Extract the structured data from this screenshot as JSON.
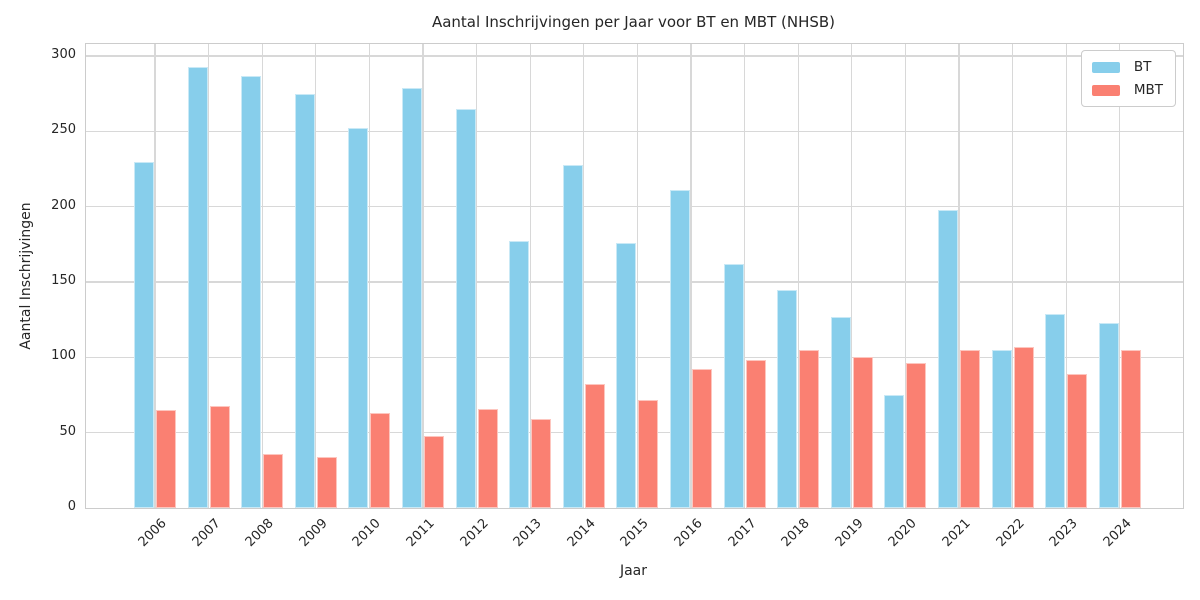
{
  "title": "Aantal Inschrijvingen per Jaar voor BT en MBT (NHSB)",
  "colors": {
    "bt": "#87CEEB",
    "mbt": "#FA8072",
    "grid": "#d8d8d8",
    "spine": "#cccccc",
    "text": "#262626",
    "background": "#ffffff"
  },
  "chart_data": {
    "type": "bar",
    "title": "Aantal Inschrijvingen per Jaar voor BT en MBT (NHSB)",
    "xlabel": "Jaar",
    "ylabel": "Aantal Inschrijvingen",
    "categories": [
      "2006",
      "2007",
      "2008",
      "2009",
      "2010",
      "2011",
      "2012",
      "2013",
      "2014",
      "2015",
      "2016",
      "2017",
      "2018",
      "2019",
      "2020",
      "2021",
      "2022",
      "2023",
      "2024"
    ],
    "series": [
      {
        "name": "BT",
        "color": "#87CEEB",
        "values": [
          230,
          293,
          287,
          275,
          252,
          279,
          265,
          177,
          228,
          176,
          211,
          162,
          145,
          127,
          75,
          198,
          105,
          129,
          123
        ]
      },
      {
        "name": "MBT",
        "color": "#FA8072",
        "values": [
          65,
          68,
          36,
          34,
          63,
          48,
          66,
          59,
          82,
          72,
          92,
          98,
          105,
          100,
          96,
          105,
          107,
          89,
          105
        ]
      }
    ],
    "yticks": [
      0,
      50,
      100,
      150,
      200,
      250,
      300
    ],
    "ylim": [
      0,
      308
    ],
    "grid": true,
    "legend_position": "upper right"
  }
}
